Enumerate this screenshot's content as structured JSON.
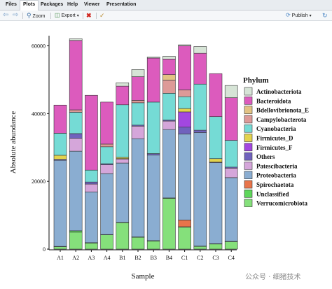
{
  "app": {
    "tabs": [
      "Files",
      "Plots",
      "Packages",
      "Help",
      "Viewer",
      "Presentation"
    ],
    "active_tab": "Plots"
  },
  "toolbar": {
    "zoom_label": "Zoom",
    "export_label": "Export",
    "publish_label": "Publish",
    "icons": [
      "back-arrow-icon",
      "forward-arrow-icon",
      "zoom-icon",
      "export-icon",
      "remove-icon",
      "broom-icon",
      "publish-icon"
    ]
  },
  "watermark": "公众号 · 细猪技术",
  "chart_data": {
    "type": "bar",
    "stacked": true,
    "xlabel": "Sample",
    "ylabel": "Absolute abundance",
    "ylim": [
      0,
      63000
    ],
    "yticks": [
      0,
      20000,
      40000,
      60000
    ],
    "ytick_labels": [
      "0",
      "20000",
      "40000",
      "60000"
    ],
    "grid": false,
    "legend_title": "Phylum",
    "legend_position": "right",
    "categories": [
      "A1",
      "A2",
      "A3",
      "A4",
      "B1",
      "B2",
      "B3",
      "B4",
      "C1",
      "C2",
      "C3",
      "C4"
    ],
    "series": [
      {
        "name": "Verrucomicrobiota",
        "color": "#85e07b",
        "values": [
          700,
          5000,
          1800,
          4200,
          7800,
          3500,
          2400,
          15000,
          6500,
          800,
          1500,
          2200
        ]
      },
      {
        "name": "Unclassified",
        "color": "#5ed65a",
        "values": [
          100,
          400,
          100,
          100,
          100,
          100,
          100,
          100,
          100,
          100,
          100,
          100
        ]
      },
      {
        "name": "Spirochaetota",
        "color": "#e8744a",
        "values": [
          0,
          0,
          0,
          0,
          0,
          0,
          0,
          0,
          2000,
          0,
          0,
          0
        ]
      },
      {
        "name": "Proteobacteria",
        "color": "#8aadd1",
        "values": [
          25400,
          23500,
          15000,
          18000,
          17500,
          29000,
          25300,
          20200,
          25400,
          33500,
          23900,
          18800
        ]
      },
      {
        "name": "Patescibacteria",
        "color": "#d5a6da",
        "values": [
          0,
          3800,
          2300,
          2600,
          1200,
          3700,
          0,
          2500,
          0,
          0,
          0,
          2800
        ]
      },
      {
        "name": "Others",
        "color": "#7062bd",
        "values": [
          300,
          1400,
          600,
          300,
          100,
          300,
          400,
          300,
          2000,
          700,
          200,
          300
        ]
      },
      {
        "name": "Firmicutes_F",
        "color": "#a347e0",
        "values": [
          0,
          0,
          0,
          0,
          0,
          0,
          0,
          0,
          4500,
          0,
          0,
          0
        ]
      },
      {
        "name": "Firmicutes_D",
        "color": "#e3d34d",
        "values": [
          1200,
          0,
          0,
          0,
          400,
          0,
          0,
          0,
          1000,
          0,
          1000,
          0
        ]
      },
      {
        "name": "Cyanobacteria",
        "color": "#75dbd5",
        "values": [
          6500,
          6300,
          3500,
          5000,
          15500,
          6600,
          15200,
          7900,
          3500,
          13600,
          12400,
          7900
        ]
      },
      {
        "name": "Campylobacterota",
        "color": "#dd9a98",
        "values": [
          0,
          700,
          0,
          800,
          0,
          700,
          0,
          3900,
          2000,
          0,
          0,
          0
        ]
      },
      {
        "name": "Bdellovibrionota_E",
        "color": "#e3c384",
        "values": [
          0,
          0,
          0,
          0,
          0,
          0,
          0,
          1600,
          0,
          0,
          0,
          0
        ]
      },
      {
        "name": "Bacteroidota",
        "color": "#dc5bbd",
        "values": [
          8300,
          20500,
          22100,
          12400,
          5500,
          7000,
          13000,
          4600,
          13000,
          9100,
          12700,
          12600
        ]
      },
      {
        "name": "Actinobacteriota",
        "color": "#d6e4d6",
        "values": [
          0,
          500,
          0,
          0,
          1000,
          2100,
          300,
          800,
          300,
          2000,
          0,
          3600
        ]
      }
    ]
  }
}
